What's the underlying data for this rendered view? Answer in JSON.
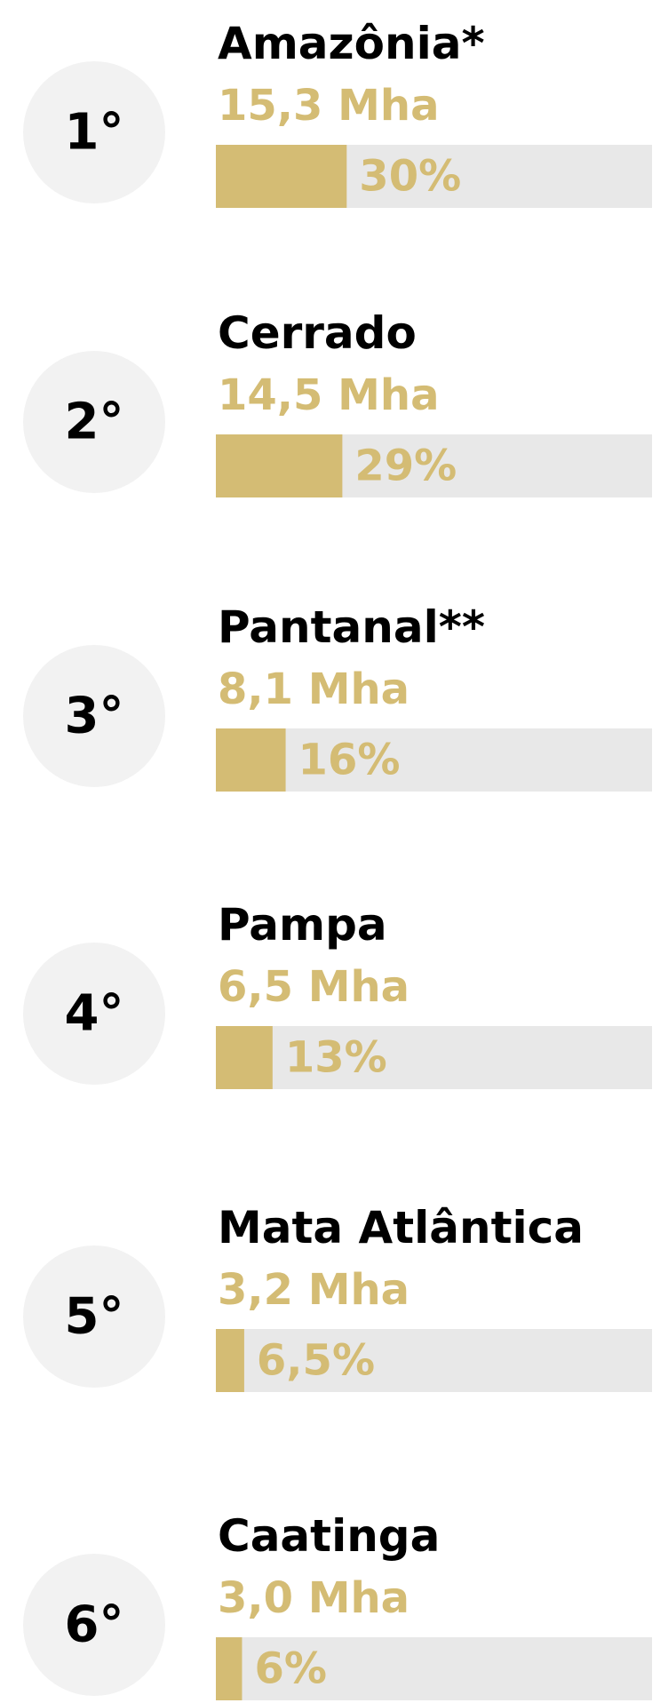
{
  "items": [
    {
      "rank": "1°",
      "name": "Amazônia*",
      "area": "15,3 Mha",
      "share": 30,
      "share_label": "30%"
    },
    {
      "rank": "2°",
      "name": "Cerrado",
      "area": "14,5 Mha",
      "share": 29,
      "share_label": "29%"
    },
    {
      "rank": "3°",
      "name": "Pantanal**",
      "area": "8,1 Mha",
      "share": 16,
      "share_label": "16%"
    },
    {
      "rank": "4°",
      "name": "Pampa",
      "area": "6,5 Mha",
      "share": 13,
      "share_label": "13%"
    },
    {
      "rank": "5°",
      "name": "Mata Atlântica",
      "area": "3,2 Mha",
      "share": 6.5,
      "share_label": "6,5%"
    },
    {
      "rank": "6°",
      "name": "Caatinga",
      "area": "3,0 Mha",
      "share": 6,
      "share_label": "6%"
    }
  ]
}
